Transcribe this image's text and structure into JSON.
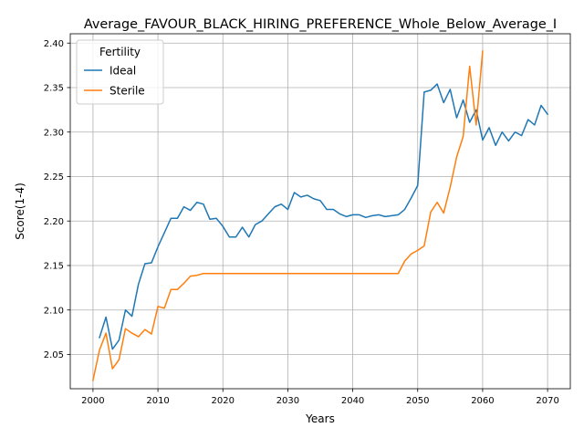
{
  "chart_data": {
    "type": "line",
    "title": "Average_FAVOUR_BLACK_HIRING_PREFERENCE_Whole_Below_Average_I",
    "xlabel": "Years",
    "ylabel": "Score(1-4)",
    "xlim": [
      1996.5,
      2073.5
    ],
    "ylim": [
      2.0115,
      2.4105
    ],
    "xticks": [
      2000,
      2010,
      2020,
      2030,
      2040,
      2050,
      2060,
      2070
    ],
    "yticks": [
      2.05,
      2.1,
      2.15,
      2.2,
      2.25,
      2.3,
      2.35,
      2.4
    ],
    "xtick_labels": [
      "2000",
      "2010",
      "2020",
      "2030",
      "2040",
      "2050",
      "2060",
      "2070"
    ],
    "ytick_labels": [
      "2.05",
      "2.10",
      "2.15",
      "2.20",
      "2.25",
      "2.30",
      "2.35",
      "2.40"
    ],
    "grid": true,
    "legend": {
      "title": "Fertility",
      "placement": "top-left"
    },
    "series": [
      {
        "name": "Ideal",
        "color": "#1f77b4",
        "x": [
          2001,
          2002,
          2003,
          2004,
          2005,
          2006,
          2007,
          2008,
          2009,
          2010,
          2011,
          2012,
          2013,
          2014,
          2015,
          2016,
          2017,
          2018,
          2019,
          2020,
          2021,
          2022,
          2023,
          2024,
          2025,
          2026,
          2027,
          2028,
          2029,
          2030,
          2031,
          2032,
          2033,
          2034,
          2035,
          2036,
          2037,
          2038,
          2039,
          2040,
          2041,
          2042,
          2043,
          2044,
          2045,
          2046,
          2047,
          2048,
          2049,
          2050,
          2051,
          2052,
          2053,
          2054,
          2055,
          2056,
          2057,
          2058,
          2059,
          2060,
          2061,
          2062,
          2063,
          2064,
          2065,
          2066,
          2067,
          2068,
          2069,
          2070
        ],
        "values": [
          2.069,
          2.092,
          2.056,
          2.066,
          2.1,
          2.093,
          2.129,
          2.152,
          2.153,
          2.171,
          2.187,
          2.203,
          2.203,
          2.216,
          2.212,
          2.221,
          2.219,
          2.202,
          2.203,
          2.194,
          2.182,
          2.182,
          2.193,
          2.182,
          2.196,
          2.2,
          2.208,
          2.216,
          2.219,
          2.213,
          2.232,
          2.227,
          2.229,
          2.225,
          2.223,
          2.213,
          2.213,
          2.208,
          2.205,
          2.207,
          2.207,
          2.204,
          2.206,
          2.207,
          2.205,
          2.206,
          2.207,
          2.213,
          2.226,
          2.24,
          2.345,
          2.347,
          2.354,
          2.333,
          2.348,
          2.316,
          2.336,
          2.311,
          2.325,
          2.291,
          2.305,
          2.285,
          2.3,
          2.29,
          2.3,
          2.296,
          2.314,
          2.308,
          2.33,
          2.32
        ]
      },
      {
        "name": "Sterile",
        "color": "#ff7f0e",
        "x": [
          2000,
          2001,
          2002,
          2003,
          2004,
          2005,
          2006,
          2007,
          2008,
          2009,
          2010,
          2011,
          2012,
          2013,
          2014,
          2015,
          2016,
          2017,
          2018,
          2019,
          2020,
          2021,
          2022,
          2023,
          2024,
          2025,
          2026,
          2027,
          2028,
          2029,
          2030,
          2031,
          2032,
          2033,
          2034,
          2035,
          2036,
          2037,
          2038,
          2039,
          2040,
          2041,
          2042,
          2043,
          2044,
          2045,
          2046,
          2047,
          2048,
          2049,
          2050,
          2051,
          2052,
          2053,
          2054,
          2055,
          2056,
          2057,
          2058,
          2059,
          2060
        ],
        "values": [
          2.021,
          2.055,
          2.074,
          2.034,
          2.044,
          2.079,
          2.074,
          2.07,
          2.078,
          2.073,
          2.104,
          2.102,
          2.123,
          2.123,
          2.13,
          2.138,
          2.139,
          2.141,
          2.141,
          2.141,
          2.141,
          2.141,
          2.141,
          2.141,
          2.141,
          2.141,
          2.141,
          2.141,
          2.141,
          2.141,
          2.141,
          2.141,
          2.141,
          2.141,
          2.141,
          2.141,
          2.141,
          2.141,
          2.141,
          2.141,
          2.141,
          2.141,
          2.141,
          2.141,
          2.141,
          2.141,
          2.141,
          2.141,
          2.155,
          2.163,
          2.167,
          2.172,
          2.21,
          2.221,
          2.209,
          2.238,
          2.272,
          2.295,
          2.374,
          2.308,
          2.391
        ]
      }
    ]
  }
}
